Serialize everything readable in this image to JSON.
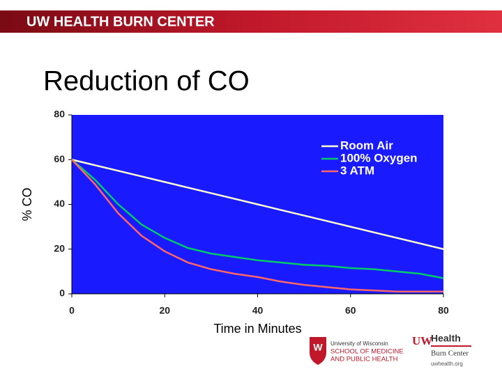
{
  "header": "UW HEALTH BURN CENTER",
  "logos": {
    "school": [
      "University of Wisconsin",
      "SCHOOL OF MEDICINE",
      "AND PUBLIC HEALTH"
    ],
    "health": [
      "UW",
      "Health",
      "Burn Center",
      "uwhealth.org"
    ]
  },
  "chart_data": {
    "type": "line",
    "title": "Reduction of CO",
    "x_label": "Time in Minutes",
    "y_label": "% CO",
    "x": [
      0,
      5,
      10,
      15,
      20,
      25,
      30,
      35,
      40,
      45,
      50,
      55,
      60,
      65,
      70,
      75,
      80
    ],
    "series": [
      {
        "name": "Room Air",
        "color": "#ffffcc",
        "values": [
          60,
          57.5,
          55,
          52.5,
          50,
          47.5,
          45,
          42.5,
          40,
          37.5,
          35,
          32.5,
          30,
          27.5,
          25,
          22.5,
          20
        ]
      },
      {
        "name": "100% Oxygen",
        "color": "#00cc66",
        "values": [
          60,
          51,
          40,
          31,
          25,
          20.5,
          18,
          16.5,
          15,
          14,
          13,
          12.5,
          11.5,
          11,
          10,
          9,
          7
        ]
      },
      {
        "name": "3 ATM",
        "color": "#ff6666",
        "values": [
          60,
          49,
          36,
          26,
          19,
          14,
          11,
          9,
          7.5,
          5.5,
          4,
          3,
          2,
          1.5,
          1,
          1,
          1
        ]
      }
    ],
    "xlim": [
      0,
      80
    ],
    "xticks": [
      0,
      20,
      40,
      60,
      80
    ],
    "ylim": [
      0,
      80
    ],
    "yticks": [
      0,
      20,
      40,
      60,
      80
    ],
    "plot_color": "#1a1aff",
    "legend": "upper right"
  }
}
